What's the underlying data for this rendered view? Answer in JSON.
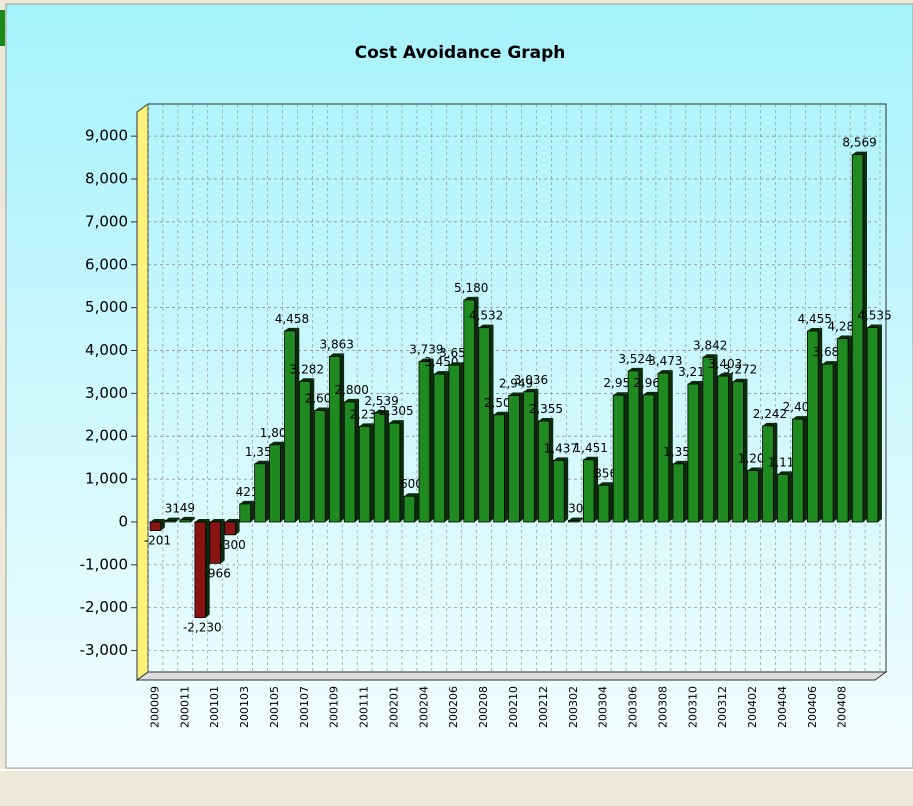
{
  "chart_data": {
    "type": "bar",
    "title": "Cost Avoidance Graph",
    "categories": [
      "200009",
      null,
      "200011",
      null,
      "200101",
      null,
      "200103",
      null,
      "200105",
      null,
      "200107",
      null,
      "200109",
      null,
      "200111",
      null,
      "200201",
      null,
      "200204",
      null,
      "200206",
      null,
      "200208",
      null,
      "200210",
      null,
      "200212",
      null,
      "200302",
      null,
      "200304",
      null,
      "200306",
      null,
      "200308",
      null,
      "200310",
      null,
      "200312",
      null,
      "200402",
      null,
      "200404",
      null,
      "200406",
      null,
      "200408",
      null,
      null
    ],
    "values": [
      -201,
      31,
      49,
      -2230,
      -966,
      -300,
      421,
      1357,
      1800,
      4458,
      3282,
      2600,
      3863,
      2800,
      2230,
      2539,
      2305,
      600,
      3739,
      3450,
      3657,
      5180,
      4532,
      2500,
      2949,
      3036,
      2355,
      1437,
      30,
      1451,
      856,
      2957,
      3524,
      2966,
      3473,
      1355,
      3218,
      3842,
      3403,
      3272,
      1200,
      2242,
      1110,
      2400,
      4455,
      3683,
      4281,
      8569,
      4535
    ],
    "value_labels": [
      "-201",
      "31",
      "49",
      "-2,230",
      "-966",
      "-300",
      "421",
      "1,357",
      "1,800",
      "4,458",
      "3,282",
      "2,600",
      "3,863",
      "2,800",
      "2,230",
      "2,539",
      "2,305",
      "600",
      "3,739",
      "3,450",
      "3,657",
      "5,180",
      "4,532",
      "2,500",
      "2,949",
      "3,036",
      "2,355",
      "1,437",
      "30",
      "1,451",
      "856",
      "2,957",
      "3,524",
      "2,966",
      "3,473",
      "1,355",
      "3,218",
      "3,842",
      "3,403",
      "3,272",
      "1,200",
      "2,242",
      "1,110",
      "2,400",
      "4,455",
      "3,683",
      "4,281",
      "8,569",
      "4,535"
    ],
    "color": "#1f8a1f",
    "negative_color": "#8a1414",
    "ylim": [
      -3500,
      9750
    ],
    "yticks": [
      {
        "value": -3000,
        "label": "-3,000"
      },
      {
        "value": -2000,
        "label": "-2,000"
      },
      {
        "value": -1000,
        "label": "-1,000"
      },
      0,
      {
        "value": 1000,
        "label": "1,000"
      },
      {
        "value": 2000,
        "label": "2,000"
      },
      {
        "value": 3000,
        "label": "3,000"
      },
      {
        "value": 4000,
        "label": "4,000"
      },
      {
        "value": 5000,
        "label": "5,000"
      },
      {
        "value": 6000,
        "label": "6,000"
      },
      {
        "value": 7000,
        "label": "7,000"
      },
      {
        "value": 8000,
        "label": "8,000"
      },
      {
        "value": 9000,
        "label": "9,000"
      }
    ],
    "grid": true
  }
}
